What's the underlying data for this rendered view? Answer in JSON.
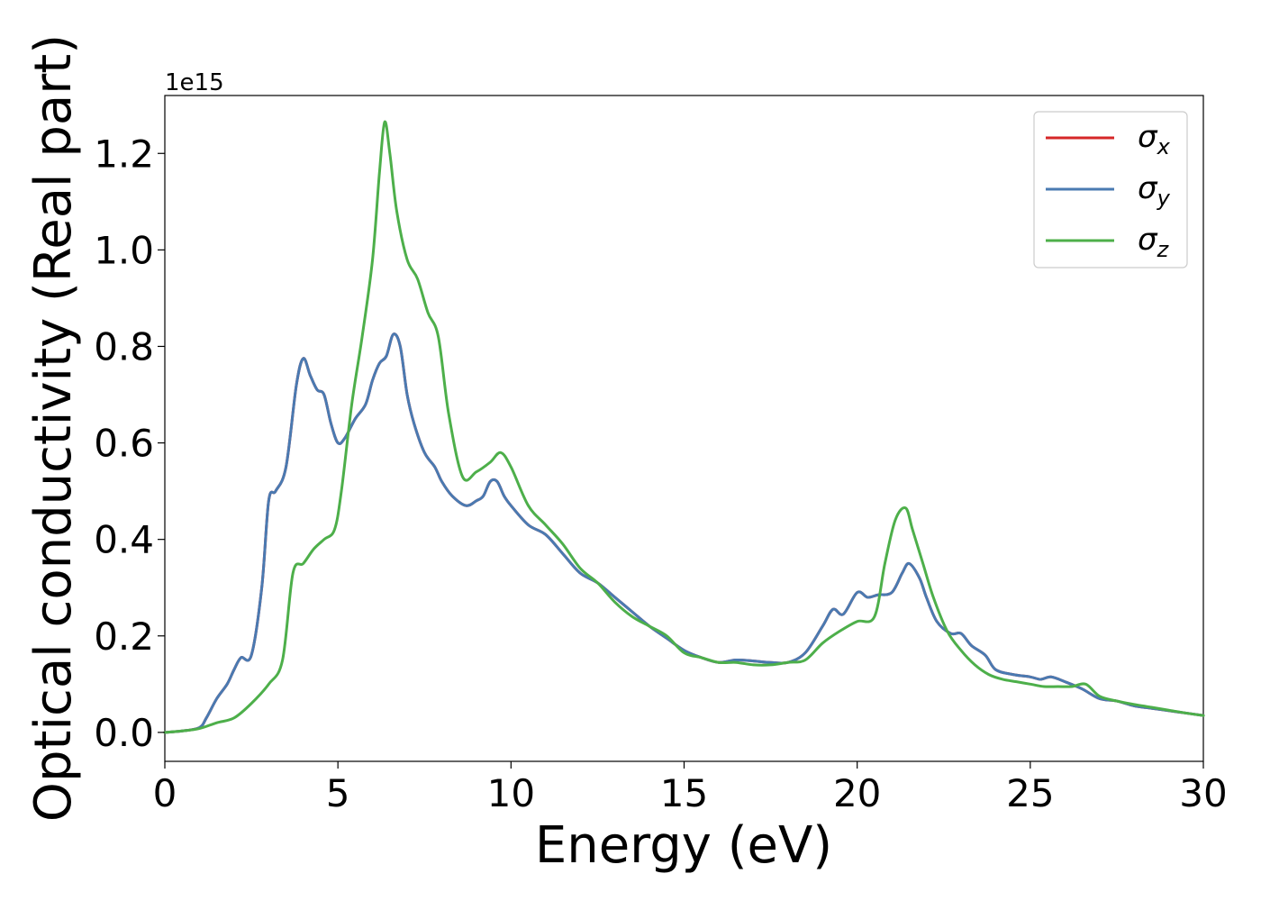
{
  "chart_data": {
    "type": "line",
    "xlabel": "Energy (eV)",
    "ylabel": "Optical conductivity (Real part)",
    "y_offset_text": "1e15",
    "xlim": [
      0,
      30
    ],
    "ylim": [
      -0.06,
      1.32
    ],
    "x_ticks": [
      0,
      5,
      10,
      15,
      20,
      25,
      30
    ],
    "x_tick_labels": [
      "0",
      "5",
      "10",
      "15",
      "20",
      "25",
      "30"
    ],
    "y_ticks": [
      0.0,
      0.2,
      0.4,
      0.6,
      0.8,
      1.0,
      1.2
    ],
    "y_tick_labels": [
      "0.0",
      "0.2",
      "0.4",
      "0.6",
      "0.8",
      "1.0",
      "1.2"
    ],
    "y_scale": "×1e15",
    "grid": false,
    "legend_position": "top-right",
    "series": [
      {
        "name": "σx",
        "sym": "σ",
        "sub": "x",
        "color": "#d62728",
        "x": [
          0,
          0.5,
          1.0,
          1.2,
          1.5,
          1.8,
          2.0,
          2.2,
          2.5,
          2.8,
          3.0,
          3.2,
          3.5,
          3.8,
          4.0,
          4.2,
          4.4,
          4.6,
          4.8,
          5.0,
          5.2,
          5.5,
          5.8,
          6.0,
          6.2,
          6.4,
          6.6,
          6.8,
          7.0,
          7.2,
          7.5,
          7.8,
          8.0,
          8.3,
          8.7,
          9.0,
          9.2,
          9.4,
          9.6,
          9.8,
          10.0,
          10.5,
          11.0,
          11.5,
          12.0,
          12.5,
          13.0,
          13.5,
          14.0,
          14.5,
          15.0,
          15.5,
          16.0,
          16.5,
          17.0,
          17.5,
          18.0,
          18.5,
          19.0,
          19.3,
          19.6,
          20.0,
          20.3,
          20.6,
          21.0,
          21.3,
          21.5,
          21.8,
          22.0,
          22.3,
          22.7,
          23.0,
          23.3,
          23.7,
          24.0,
          24.5,
          25.0,
          25.3,
          25.6,
          26.0,
          26.5,
          27.0,
          27.5,
          28.0,
          28.5,
          29.0,
          29.5,
          30.0
        ],
        "y": [
          0,
          0.003,
          0.01,
          0.03,
          0.07,
          0.1,
          0.13,
          0.155,
          0.16,
          0.3,
          0.48,
          0.5,
          0.55,
          0.72,
          0.775,
          0.74,
          0.71,
          0.7,
          0.64,
          0.6,
          0.61,
          0.65,
          0.68,
          0.73,
          0.765,
          0.78,
          0.825,
          0.8,
          0.7,
          0.64,
          0.58,
          0.55,
          0.52,
          0.49,
          0.47,
          0.48,
          0.49,
          0.52,
          0.52,
          0.49,
          0.47,
          0.43,
          0.41,
          0.37,
          0.33,
          0.31,
          0.28,
          0.25,
          0.22,
          0.195,
          0.17,
          0.155,
          0.145,
          0.15,
          0.148,
          0.145,
          0.145,
          0.165,
          0.22,
          0.255,
          0.245,
          0.29,
          0.28,
          0.285,
          0.29,
          0.33,
          0.35,
          0.32,
          0.28,
          0.23,
          0.205,
          0.205,
          0.18,
          0.16,
          0.13,
          0.12,
          0.115,
          0.11,
          0.115,
          0.105,
          0.09,
          0.07,
          0.065,
          0.055,
          0.05,
          0.045,
          0.04,
          0.035
        ]
      },
      {
        "name": "σy",
        "sym": "σ",
        "sub": "y",
        "color": "#4a7ab1",
        "x": [
          0,
          0.5,
          1.0,
          1.2,
          1.5,
          1.8,
          2.0,
          2.2,
          2.5,
          2.8,
          3.0,
          3.2,
          3.5,
          3.8,
          4.0,
          4.2,
          4.4,
          4.6,
          4.8,
          5.0,
          5.2,
          5.5,
          5.8,
          6.0,
          6.2,
          6.4,
          6.6,
          6.8,
          7.0,
          7.2,
          7.5,
          7.8,
          8.0,
          8.3,
          8.7,
          9.0,
          9.2,
          9.4,
          9.6,
          9.8,
          10.0,
          10.5,
          11.0,
          11.5,
          12.0,
          12.5,
          13.0,
          13.5,
          14.0,
          14.5,
          15.0,
          15.5,
          16.0,
          16.5,
          17.0,
          17.5,
          18.0,
          18.5,
          19.0,
          19.3,
          19.6,
          20.0,
          20.3,
          20.6,
          21.0,
          21.3,
          21.5,
          21.8,
          22.0,
          22.3,
          22.7,
          23.0,
          23.3,
          23.7,
          24.0,
          24.5,
          25.0,
          25.3,
          25.6,
          26.0,
          26.5,
          27.0,
          27.5,
          28.0,
          28.5,
          29.0,
          29.5,
          30.0
        ],
        "y": [
          0,
          0.003,
          0.01,
          0.03,
          0.07,
          0.1,
          0.13,
          0.155,
          0.16,
          0.3,
          0.48,
          0.5,
          0.55,
          0.72,
          0.775,
          0.74,
          0.71,
          0.7,
          0.64,
          0.6,
          0.61,
          0.65,
          0.68,
          0.73,
          0.765,
          0.78,
          0.825,
          0.8,
          0.7,
          0.64,
          0.58,
          0.55,
          0.52,
          0.49,
          0.47,
          0.48,
          0.49,
          0.52,
          0.52,
          0.49,
          0.47,
          0.43,
          0.41,
          0.37,
          0.33,
          0.31,
          0.28,
          0.25,
          0.22,
          0.195,
          0.17,
          0.155,
          0.145,
          0.15,
          0.148,
          0.145,
          0.145,
          0.165,
          0.22,
          0.255,
          0.245,
          0.29,
          0.28,
          0.285,
          0.29,
          0.33,
          0.35,
          0.32,
          0.28,
          0.23,
          0.205,
          0.205,
          0.18,
          0.16,
          0.13,
          0.12,
          0.115,
          0.11,
          0.115,
          0.105,
          0.09,
          0.07,
          0.065,
          0.055,
          0.05,
          0.045,
          0.04,
          0.035
        ]
      },
      {
        "name": "σz",
        "sym": "σ",
        "sub": "z",
        "color": "#4daf4a",
        "x": [
          0,
          0.5,
          1.0,
          1.5,
          2.0,
          2.5,
          3.0,
          3.4,
          3.7,
          4.0,
          4.3,
          4.6,
          4.9,
          5.1,
          5.4,
          5.7,
          6.0,
          6.2,
          6.35,
          6.5,
          6.7,
          7.0,
          7.3,
          7.6,
          7.9,
          8.2,
          8.6,
          9.0,
          9.4,
          9.7,
          10.0,
          10.5,
          11.0,
          11.5,
          12.0,
          12.5,
          13.0,
          13.5,
          14.0,
          14.5,
          15.0,
          15.5,
          16.0,
          16.5,
          17.0,
          17.5,
          18.0,
          18.5,
          19.0,
          19.5,
          20.0,
          20.5,
          20.8,
          21.1,
          21.4,
          21.6,
          21.9,
          22.2,
          22.6,
          23.0,
          23.4,
          23.8,
          24.2,
          24.6,
          25.0,
          25.4,
          25.8,
          26.2,
          26.6,
          27.0,
          27.5,
          28.0,
          28.5,
          29.0,
          29.5,
          30.0
        ],
        "y": [
          0,
          0.003,
          0.008,
          0.02,
          0.03,
          0.06,
          0.1,
          0.15,
          0.33,
          0.35,
          0.38,
          0.4,
          0.42,
          0.5,
          0.68,
          0.82,
          0.98,
          1.16,
          1.265,
          1.2,
          1.08,
          0.98,
          0.94,
          0.87,
          0.82,
          0.66,
          0.53,
          0.54,
          0.56,
          0.58,
          0.55,
          0.47,
          0.43,
          0.39,
          0.34,
          0.31,
          0.27,
          0.24,
          0.22,
          0.2,
          0.165,
          0.155,
          0.145,
          0.145,
          0.14,
          0.14,
          0.145,
          0.15,
          0.185,
          0.21,
          0.23,
          0.24,
          0.35,
          0.44,
          0.465,
          0.42,
          0.35,
          0.28,
          0.21,
          0.17,
          0.14,
          0.12,
          0.11,
          0.105,
          0.1,
          0.095,
          0.095,
          0.095,
          0.1,
          0.075,
          0.065,
          0.058,
          0.052,
          0.046,
          0.04,
          0.035
        ]
      }
    ]
  }
}
